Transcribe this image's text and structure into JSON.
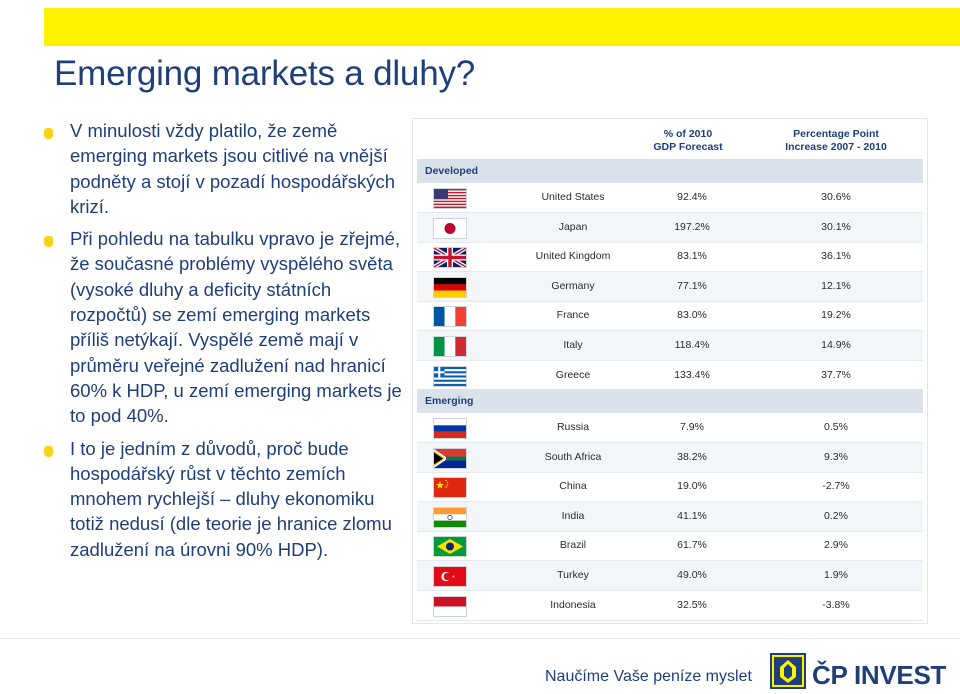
{
  "title": "Emerging markets a dluhy?",
  "bullets": [
    "V minulosti vždy platilo, že země emerging markets jsou citlivé na vnější podněty a stojí v pozadí hospodářských krizí.",
    "Při pohledu na tabulku vpravo je zřejmé, že současné problémy vyspělého světa (vysoké dluhy a deficity státních rozpočtů) se zemí emerging markets příliš netýkají. Vyspělé země mají v průměru veřejné zadlužení nad hranicí 60% k HDP, u zemí emerging markets je to pod 40%.",
    "I to je jedním z důvodů, proč bude hospodářský růst v těchto zemích mnohem rychlejší – dluhy ekonomiku totiž nedusí (dle teorie je hranice zlomu zadlužení na úrovni 90% HDP)."
  ],
  "table": {
    "col1_header": "% of 2010\nGDP Forecast",
    "col1_line1": "% of 2010",
    "col1_line2": "GDP Forecast",
    "col2_line1": "Percentage Point",
    "col2_line2": "Increase 2007 - 2010",
    "developed_label": "Developed",
    "emerging_label": "Emerging",
    "developed": [
      {
        "country": "United States",
        "gdp": "92.4%",
        "increase": "30.6%",
        "flag": "us-flag"
      },
      {
        "country": "Japan",
        "gdp": "197.2%",
        "increase": "30.1%",
        "flag": "japan-flag"
      },
      {
        "country": "United Kingdom",
        "gdp": "83.1%",
        "increase": "36.1%",
        "flag": "uk-flag"
      },
      {
        "country": "Germany",
        "gdp": "77.1%",
        "increase": "12.1%",
        "flag": "germany-flag"
      },
      {
        "country": "France",
        "gdp": "83.0%",
        "increase": "19.2%",
        "flag": "france-flag"
      },
      {
        "country": "Italy",
        "gdp": "118.4%",
        "increase": "14.9%",
        "flag": "italy-flag"
      },
      {
        "country": "Greece",
        "gdp": "133.4%",
        "increase": "37.7%",
        "flag": "greece-flag"
      }
    ],
    "emerging": [
      {
        "country": "Russia",
        "gdp": "7.9%",
        "increase": "0.5%",
        "flag": "russia-flag"
      },
      {
        "country": "South Africa",
        "gdp": "38.2%",
        "increase": "9.3%",
        "flag": "south-africa-flag"
      },
      {
        "country": "China",
        "gdp": "19.0%",
        "increase": "-2.7%",
        "flag": "china-flag"
      },
      {
        "country": "India",
        "gdp": "41.1%",
        "increase": "0.2%",
        "flag": "india-flag"
      },
      {
        "country": "Brazil",
        "gdp": "61.7%",
        "increase": "2.9%",
        "flag": "brazil-flag"
      },
      {
        "country": "Turkey",
        "gdp": "49.0%",
        "increase": "1.9%",
        "flag": "turkey-flag"
      },
      {
        "country": "Indonesia",
        "gdp": "32.5%",
        "increase": "-3.8%",
        "flag": "indonesia-flag"
      }
    ]
  },
  "footer": {
    "slogan": "Naučíme Vaše peníze myslet",
    "logo_text": "ČP INVEST"
  },
  "colors": {
    "accent_yellow": "#fff200",
    "brand_blue": "#1f3f7a",
    "section_band": "#d9e2ea"
  }
}
